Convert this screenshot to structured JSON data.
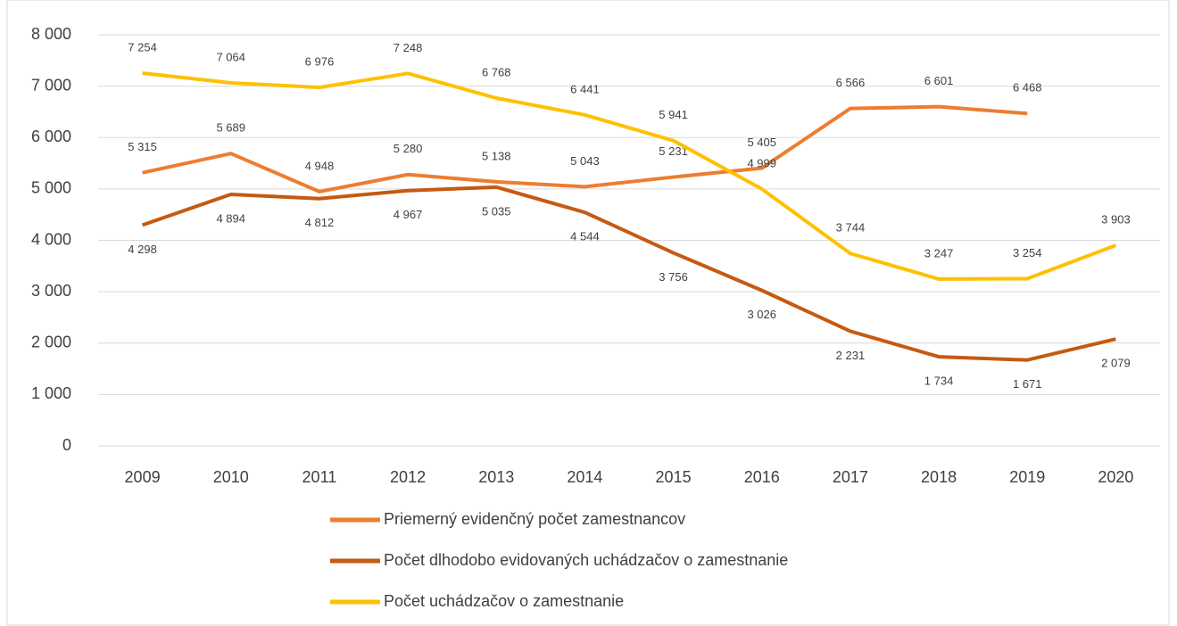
{
  "chart_data": {
    "type": "line",
    "categories": [
      "2009",
      "2010",
      "2011",
      "2012",
      "2013",
      "2014",
      "2015",
      "2016",
      "2017",
      "2018",
      "2019",
      "2020"
    ],
    "series": [
      {
        "name": "Priemerný evidenčný počet zamestnancov",
        "color": "#ed7d31",
        "values": [
          5315,
          5689,
          4948,
          5280,
          5138,
          5043,
          5231,
          5405,
          6566,
          6601,
          6468,
          null
        ],
        "value_labels": [
          "5 315",
          "5 689",
          "4 948",
          "5 280",
          "5 138",
          "5 043",
          "5 231",
          "5 405",
          "6 566",
          "6 601",
          "6 468",
          null
        ]
      },
      {
        "name": "Počet dlhodobo evidovaných uchádzačov o zamestnanie",
        "color": "#c55a11",
        "values": [
          4298,
          4894,
          4812,
          4967,
          5035,
          4544,
          3756,
          3026,
          2231,
          1734,
          1671,
          2079
        ],
        "value_labels": [
          "4 298",
          "4 894",
          "4 812",
          "4 967",
          "5 035",
          "4 544",
          "3 756",
          "3 026",
          "2 231",
          "1 734",
          "1 671",
          "2 079"
        ]
      },
      {
        "name": "Počet uchádzačov o zamestnanie",
        "color": "#ffc000",
        "values": [
          7254,
          7064,
          6976,
          7248,
          6768,
          6441,
          5941,
          4999,
          3744,
          3247,
          3254,
          3903
        ],
        "value_labels": [
          "7 254",
          "7 064",
          "6 976",
          "7 248",
          "6 768",
          "6 441",
          "5 941",
          "4 999",
          "3 744",
          "3 247",
          "3 254",
          "3 903"
        ]
      }
    ],
    "ylim": [
      0,
      8000
    ],
    "yticks": [
      0,
      {
        "value": 1000,
        "label": "1 000"
      },
      {
        "value": 2000,
        "label": "2 000"
      },
      {
        "value": 3000,
        "label": "3 000"
      },
      {
        "value": 4000,
        "label": "4 000"
      },
      {
        "value": 5000,
        "label": "5 000"
      },
      {
        "value": 6000,
        "label": "6 000"
      },
      {
        "value": 7000,
        "label": "7 000"
      },
      {
        "value": 8000,
        "label": "8 000"
      }
    ],
    "grid": true,
    "legend": "bottom"
  }
}
